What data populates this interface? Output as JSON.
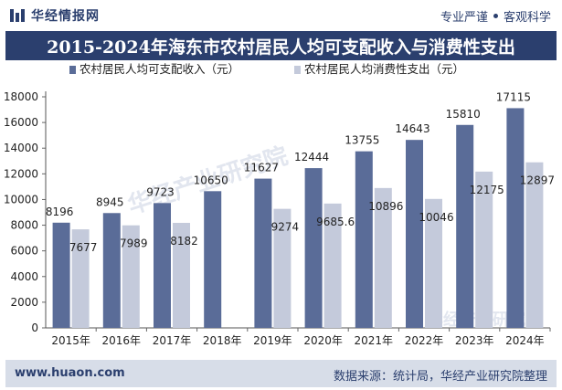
{
  "header": {
    "brand": "华经情报网",
    "tag1": "专业严谨",
    "tag2": "客观科学"
  },
  "title": "2015-2024年海东市农村居民人均可支配收入与消费性支出",
  "footer": {
    "url": "www.huaon.com",
    "source": "数据来源：统计局，华经产业研究院整理"
  },
  "watermark": "华经产业研究院",
  "colors": {
    "series1": "#5a6c98",
    "series2": "#c4cadb",
    "brand": "#2b3f6e"
  },
  "chart_data": {
    "type": "bar",
    "categories": [
      "2015年",
      "2016年",
      "2017年",
      "2018年",
      "2019年",
      "2020年",
      "2021年",
      "2022年",
      "2023年",
      "2024年"
    ],
    "series": [
      {
        "name": "农村居民人均可支配收入（元）",
        "values": [
          8196,
          8945,
          9723,
          10650,
          11627,
          12444,
          13755,
          14643,
          15810,
          17115
        ],
        "labels": [
          "8196",
          "8945",
          "9723",
          "10650",
          "11627",
          "12444",
          "13755",
          "14643",
          "15810",
          "17115"
        ]
      },
      {
        "name": "农村居民人均消费性支出（元）",
        "values": [
          7677,
          7989,
          8182,
          null,
          9274,
          9685.6,
          10896,
          10046,
          12175,
          12897
        ],
        "labels": [
          "7677",
          "7989",
          "8182",
          "",
          "9274",
          "9685.6",
          "10896",
          "10046",
          "12175",
          "12897"
        ]
      }
    ],
    "ylim": [
      0,
      18000
    ],
    "yticks": [
      "0",
      "2000",
      "4000",
      "6000",
      "8000",
      "10000",
      "12000",
      "14000",
      "16000",
      "18000"
    ],
    "legend_position": "top",
    "grid": false
  }
}
